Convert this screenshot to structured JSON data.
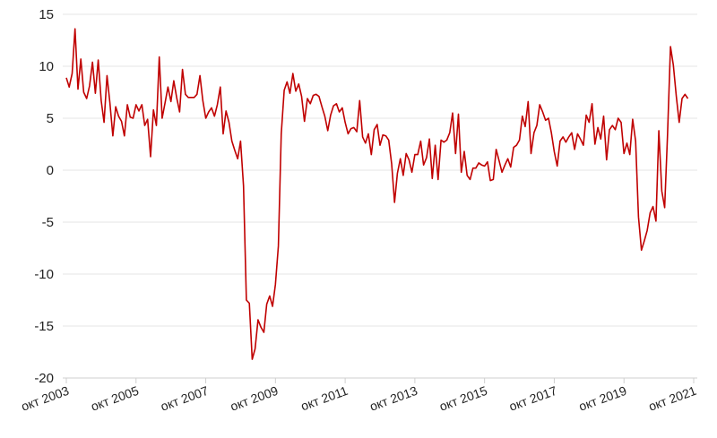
{
  "chart_data": {
    "type": "line",
    "title": "",
    "xlabel": "",
    "ylabel": "",
    "ylim": [
      -20,
      15
    ],
    "yticks": [
      -20,
      -15,
      -10,
      -5,
      0,
      5,
      10,
      15
    ],
    "grid": "horizontal",
    "legend": "none",
    "line_color": "#c00000",
    "x_start": "2003-10",
    "x_end": "2021-03",
    "x_ticks": [
      {
        "date": "2003-10",
        "label": "окт 2003"
      },
      {
        "date": "2005-10",
        "label": "окт 2005"
      },
      {
        "date": "2007-10",
        "label": "окт 2007"
      },
      {
        "date": "2009-10",
        "label": "окт 2009"
      },
      {
        "date": "2011-10",
        "label": "окт 2011"
      },
      {
        "date": "2013-10",
        "label": "окт 2013"
      },
      {
        "date": "2015-10",
        "label": "окт 2015"
      },
      {
        "date": "2017-10",
        "label": "окт 2017"
      },
      {
        "date": "2019-10",
        "label": "окт 2019"
      },
      {
        "date": "2021-10",
        "label": "окт 2021"
      }
    ],
    "series": [
      {
        "points": [
          [
            "2003-10",
            8.9
          ],
          [
            "2003-11",
            8.0
          ],
          [
            "2003-12",
            9.3
          ],
          [
            "2004-01",
            13.6
          ],
          [
            "2004-02",
            7.8
          ],
          [
            "2004-03",
            10.7
          ],
          [
            "2004-04",
            7.5
          ],
          [
            "2004-05",
            6.9
          ],
          [
            "2004-06",
            8.1
          ],
          [
            "2004-07",
            10.4
          ],
          [
            "2004-08",
            7.4
          ],
          [
            "2004-09",
            10.6
          ],
          [
            "2004-10",
            6.7
          ],
          [
            "2004-11",
            4.6
          ],
          [
            "2004-12",
            9.1
          ],
          [
            "2005-01",
            6.5
          ],
          [
            "2005-02",
            3.3
          ],
          [
            "2005-03",
            6.1
          ],
          [
            "2005-04",
            5.2
          ],
          [
            "2005-05",
            4.7
          ],
          [
            "2005-06",
            3.3
          ],
          [
            "2005-07",
            6.3
          ],
          [
            "2005-08",
            5.1
          ],
          [
            "2005-09",
            5.0
          ],
          [
            "2005-10",
            6.3
          ],
          [
            "2005-11",
            5.7
          ],
          [
            "2005-12",
            6.3
          ],
          [
            "2006-01",
            4.3
          ],
          [
            "2006-02",
            4.9
          ],
          [
            "2006-03",
            1.3
          ],
          [
            "2006-04",
            5.8
          ],
          [
            "2006-05",
            4.3
          ],
          [
            "2006-06",
            10.9
          ],
          [
            "2006-07",
            5.0
          ],
          [
            "2006-08",
            6.5
          ],
          [
            "2006-09",
            8.0
          ],
          [
            "2006-10",
            6.6
          ],
          [
            "2006-11",
            8.6
          ],
          [
            "2006-12",
            7.0
          ],
          [
            "2007-01",
            5.6
          ],
          [
            "2007-02",
            9.7
          ],
          [
            "2007-03",
            7.3
          ],
          [
            "2007-04",
            7.0
          ],
          [
            "2007-05",
            7.0
          ],
          [
            "2007-06",
            7.0
          ],
          [
            "2007-07",
            7.3
          ],
          [
            "2007-08",
            9.1
          ],
          [
            "2007-09",
            6.7
          ],
          [
            "2007-10",
            5.0
          ],
          [
            "2007-11",
            5.6
          ],
          [
            "2007-12",
            6.0
          ],
          [
            "2008-01",
            5.2
          ],
          [
            "2008-02",
            6.3
          ],
          [
            "2008-03",
            8.0
          ],
          [
            "2008-04",
            3.5
          ],
          [
            "2008-05",
            5.7
          ],
          [
            "2008-06",
            4.6
          ],
          [
            "2008-07",
            2.8
          ],
          [
            "2008-08",
            1.9
          ],
          [
            "2008-09",
            1.1
          ],
          [
            "2008-10",
            2.8
          ],
          [
            "2008-11",
            -1.5
          ],
          [
            "2008-12",
            -12.5
          ],
          [
            "2009-01",
            -12.8
          ],
          [
            "2009-02",
            -18.2
          ],
          [
            "2009-03",
            -17.2
          ],
          [
            "2009-04",
            -14.4
          ],
          [
            "2009-05",
            -15.1
          ],
          [
            "2009-06",
            -15.6
          ],
          [
            "2009-07",
            -12.9
          ],
          [
            "2009-08",
            -12.1
          ],
          [
            "2009-09",
            -13.1
          ],
          [
            "2009-10",
            -11.0
          ],
          [
            "2009-11",
            -7.3
          ],
          [
            "2009-12",
            3.5
          ],
          [
            "2010-01",
            7.7
          ],
          [
            "2010-02",
            8.5
          ],
          [
            "2010-03",
            7.4
          ],
          [
            "2010-04",
            9.3
          ],
          [
            "2010-05",
            7.6
          ],
          [
            "2010-06",
            8.3
          ],
          [
            "2010-07",
            7.1
          ],
          [
            "2010-08",
            4.7
          ],
          [
            "2010-09",
            6.9
          ],
          [
            "2010-10",
            6.4
          ],
          [
            "2010-11",
            7.2
          ],
          [
            "2010-12",
            7.3
          ],
          [
            "2011-01",
            7.1
          ],
          [
            "2011-02",
            6.1
          ],
          [
            "2011-03",
            5.2
          ],
          [
            "2011-04",
            3.8
          ],
          [
            "2011-05",
            5.3
          ],
          [
            "2011-06",
            6.2
          ],
          [
            "2011-07",
            6.4
          ],
          [
            "2011-08",
            5.6
          ],
          [
            "2011-09",
            6.0
          ],
          [
            "2011-10",
            4.6
          ],
          [
            "2011-11",
            3.5
          ],
          [
            "2011-12",
            4.0
          ],
          [
            "2012-01",
            4.1
          ],
          [
            "2012-02",
            3.7
          ],
          [
            "2012-03",
            6.7
          ],
          [
            "2012-04",
            3.2
          ],
          [
            "2012-05",
            2.6
          ],
          [
            "2012-06",
            3.5
          ],
          [
            "2012-07",
            1.5
          ],
          [
            "2012-08",
            3.9
          ],
          [
            "2012-09",
            4.4
          ],
          [
            "2012-10",
            2.4
          ],
          [
            "2012-11",
            3.4
          ],
          [
            "2012-12",
            3.3
          ],
          [
            "2013-01",
            2.9
          ],
          [
            "2013-02",
            0.6
          ],
          [
            "2013-03",
            -3.1
          ],
          [
            "2013-04",
            -0.3
          ],
          [
            "2013-05",
            1.1
          ],
          [
            "2013-06",
            -0.5
          ],
          [
            "2013-07",
            1.6
          ],
          [
            "2013-08",
            1.0
          ],
          [
            "2013-09",
            -0.2
          ],
          [
            "2013-10",
            1.5
          ],
          [
            "2013-11",
            1.5
          ],
          [
            "2013-12",
            2.8
          ],
          [
            "2014-01",
            0.5
          ],
          [
            "2014-02",
            1.2
          ],
          [
            "2014-03",
            3.0
          ],
          [
            "2014-04",
            -0.8
          ],
          [
            "2014-05",
            2.4
          ],
          [
            "2014-06",
            -0.9
          ],
          [
            "2014-07",
            2.9
          ],
          [
            "2014-08",
            2.7
          ],
          [
            "2014-09",
            2.9
          ],
          [
            "2014-10",
            3.6
          ],
          [
            "2014-11",
            5.5
          ],
          [
            "2014-12",
            1.6
          ],
          [
            "2015-01",
            5.4
          ],
          [
            "2015-02",
            -0.2
          ],
          [
            "2015-03",
            1.8
          ],
          [
            "2015-04",
            -0.5
          ],
          [
            "2015-05",
            -0.9
          ],
          [
            "2015-06",
            0.2
          ],
          [
            "2015-07",
            0.2
          ],
          [
            "2015-08",
            0.7
          ],
          [
            "2015-09",
            0.5
          ],
          [
            "2015-10",
            0.4
          ],
          [
            "2015-11",
            0.8
          ],
          [
            "2015-12",
            -1.0
          ],
          [
            "2016-01",
            -0.9
          ],
          [
            "2016-02",
            2.0
          ],
          [
            "2016-03",
            0.9
          ],
          [
            "2016-04",
            -0.2
          ],
          [
            "2016-05",
            0.5
          ],
          [
            "2016-06",
            1.1
          ],
          [
            "2016-07",
            0.3
          ],
          [
            "2016-08",
            2.2
          ],
          [
            "2016-09",
            2.4
          ],
          [
            "2016-10",
            2.9
          ],
          [
            "2016-11",
            5.2
          ],
          [
            "2016-12",
            4.2
          ],
          [
            "2017-01",
            6.6
          ],
          [
            "2017-02",
            1.6
          ],
          [
            "2017-03",
            3.6
          ],
          [
            "2017-04",
            4.3
          ],
          [
            "2017-05",
            6.3
          ],
          [
            "2017-06",
            5.6
          ],
          [
            "2017-07",
            4.8
          ],
          [
            "2017-08",
            5.0
          ],
          [
            "2017-09",
            3.6
          ],
          [
            "2017-10",
            1.8
          ],
          [
            "2017-11",
            0.4
          ],
          [
            "2017-12",
            2.8
          ],
          [
            "2018-01",
            3.2
          ],
          [
            "2018-02",
            2.7
          ],
          [
            "2018-03",
            3.2
          ],
          [
            "2018-04",
            3.6
          ],
          [
            "2018-05",
            2.0
          ],
          [
            "2018-06",
            3.5
          ],
          [
            "2018-07",
            3.0
          ],
          [
            "2018-08",
            2.4
          ],
          [
            "2018-09",
            5.3
          ],
          [
            "2018-10",
            4.6
          ],
          [
            "2018-11",
            6.4
          ],
          [
            "2018-12",
            2.5
          ],
          [
            "2019-01",
            4.1
          ],
          [
            "2019-02",
            3.0
          ],
          [
            "2019-03",
            5.2
          ],
          [
            "2019-04",
            1.0
          ],
          [
            "2019-05",
            3.9
          ],
          [
            "2019-06",
            4.3
          ],
          [
            "2019-07",
            3.9
          ],
          [
            "2019-08",
            5.0
          ],
          [
            "2019-09",
            4.6
          ],
          [
            "2019-10",
            1.6
          ],
          [
            "2019-11",
            2.6
          ],
          [
            "2019-12",
            1.5
          ],
          [
            "2020-01",
            4.9
          ],
          [
            "2020-02",
            2.8
          ],
          [
            "2020-03",
            -4.5
          ],
          [
            "2020-04",
            -7.7
          ],
          [
            "2020-05",
            -6.8
          ],
          [
            "2020-06",
            -5.8
          ],
          [
            "2020-07",
            -4.1
          ],
          [
            "2020-08",
            -3.5
          ],
          [
            "2020-09",
            -4.9
          ],
          [
            "2020-10",
            3.8
          ],
          [
            "2020-11",
            -2.0
          ],
          [
            "2020-12",
            -3.6
          ],
          [
            "2021-01",
            3.4
          ],
          [
            "2021-02",
            11.9
          ],
          [
            "2021-03",
            10.1
          ],
          [
            "2021-04",
            7.1
          ],
          [
            "2021-05",
            4.6
          ],
          [
            "2021-06",
            6.9
          ],
          [
            "2021-07",
            7.3
          ],
          [
            "2021-08",
            6.9
          ]
        ]
      }
    ]
  }
}
